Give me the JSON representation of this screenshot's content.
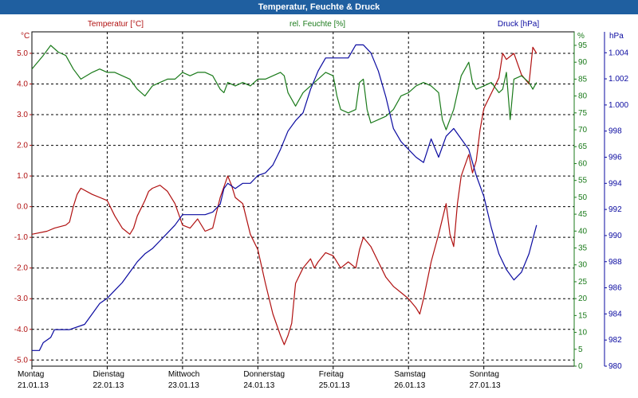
{
  "window": {
    "title": "Temperatur, Feuchte & Druck"
  },
  "chart_data": {
    "type": "line",
    "title": "Temperatur, Feuchte & Druck",
    "colors": {
      "temperature": "#b01010",
      "humidity": "#1a7a1a",
      "pressure": "#0a0aa0",
      "grid": "#000000"
    },
    "grid": true,
    "x_categories": [
      {
        "day": "Montag",
        "date": "21.01.13"
      },
      {
        "day": "Dienstag",
        "date": "22.01.13"
      },
      {
        "day": "Mittwoch",
        "date": "23.01.13"
      },
      {
        "day": "Donnerstag",
        "date": "24.01.13"
      },
      {
        "day": "Freitag",
        "date": "25.01.13"
      },
      {
        "day": "Samstag",
        "date": "26.01.13"
      },
      {
        "day": "Sonntag",
        "date": "27.01.13"
      }
    ],
    "x_range_days": [
      0,
      7.2
    ],
    "axes": {
      "temperature": {
        "label": "Temperatur [°C]",
        "unit": "°C",
        "range": [
          -5.2,
          5.7
        ],
        "ticks": [
          {
            "v": 5.0,
            "t": "5.0"
          },
          {
            "v": 4.0,
            "t": "4.0"
          },
          {
            "v": 3.0,
            "t": "3.0"
          },
          {
            "v": 2.0,
            "t": "2.0"
          },
          {
            "v": 1.0,
            "t": "1.0"
          },
          {
            "v": 0.0,
            "t": "0.0"
          },
          {
            "v": -1.0,
            "t": "-1.0"
          },
          {
            "v": -2.0,
            "t": "-2.0"
          },
          {
            "v": -3.0,
            "t": "-3.0"
          },
          {
            "v": -4.0,
            "t": "-4.0"
          },
          {
            "v": -5.0,
            "t": "-5.0"
          }
        ]
      },
      "humidity": {
        "label": "rel. Feuchte [%]",
        "unit": "%",
        "range": [
          0,
          99
        ],
        "ticks": [
          {
            "v": 95,
            "t": "95"
          },
          {
            "v": 90,
            "t": "90"
          },
          {
            "v": 85,
            "t": "85"
          },
          {
            "v": 80,
            "t": "80"
          },
          {
            "v": 75,
            "t": "75"
          },
          {
            "v": 70,
            "t": "70"
          },
          {
            "v": 65,
            "t": "65"
          },
          {
            "v": 60,
            "t": "60"
          },
          {
            "v": 55,
            "t": "55"
          },
          {
            "v": 50,
            "t": "50"
          },
          {
            "v": 45,
            "t": "45"
          },
          {
            "v": 40,
            "t": "40"
          },
          {
            "v": 35,
            "t": "35"
          },
          {
            "v": 30,
            "t": "30"
          },
          {
            "v": 25,
            "t": "25"
          },
          {
            "v": 20,
            "t": "20"
          },
          {
            "v": 15,
            "t": "15"
          },
          {
            "v": 10,
            "t": "10"
          },
          {
            "v": 5,
            "t": "5"
          },
          {
            "v": 0,
            "t": "0"
          }
        ]
      },
      "pressure": {
        "label": "Druck [hPa]",
        "unit": "hPa",
        "range": [
          980,
          1005.6
        ],
        "ticks": [
          {
            "v": 1004,
            "t": "1.004"
          },
          {
            "v": 1002,
            "t": "1.002"
          },
          {
            "v": 1000,
            "t": "1.000"
          },
          {
            "v": 998,
            "t": "998"
          },
          {
            "v": 996,
            "t": "996"
          },
          {
            "v": 994,
            "t": "994"
          },
          {
            "v": 992,
            "t": "992"
          },
          {
            "v": 990,
            "t": "990"
          },
          {
            "v": 988,
            "t": "988"
          },
          {
            "v": 986,
            "t": "986"
          },
          {
            "v": 984,
            "t": "984"
          },
          {
            "v": 982,
            "t": "982"
          },
          {
            "v": 980,
            "t": "980"
          }
        ]
      }
    },
    "series": [
      {
        "name": "Temperatur [°C]",
        "axis": "temperature",
        "points": [
          [
            0.0,
            -0.9
          ],
          [
            0.2,
            -0.8
          ],
          [
            0.3,
            -0.7
          ],
          [
            0.45,
            -0.6
          ],
          [
            0.5,
            -0.5
          ],
          [
            0.55,
            0.0
          ],
          [
            0.6,
            0.4
          ],
          [
            0.65,
            0.6
          ],
          [
            0.8,
            0.4
          ],
          [
            1.0,
            0.2
          ],
          [
            1.1,
            -0.3
          ],
          [
            1.2,
            -0.7
          ],
          [
            1.3,
            -0.9
          ],
          [
            1.35,
            -0.7
          ],
          [
            1.4,
            -0.3
          ],
          [
            1.5,
            0.2
          ],
          [
            1.55,
            0.5
          ],
          [
            1.6,
            0.6
          ],
          [
            1.7,
            0.7
          ],
          [
            1.8,
            0.5
          ],
          [
            1.9,
            0.1
          ],
          [
            2.0,
            -0.6
          ],
          [
            2.1,
            -0.7
          ],
          [
            2.2,
            -0.4
          ],
          [
            2.3,
            -0.8
          ],
          [
            2.4,
            -0.7
          ],
          [
            2.5,
            0.3
          ],
          [
            2.6,
            1.0
          ],
          [
            2.65,
            0.7
          ],
          [
            2.7,
            0.3
          ],
          [
            2.8,
            0.1
          ],
          [
            2.9,
            -0.9
          ],
          [
            3.0,
            -1.4
          ],
          [
            3.1,
            -2.5
          ],
          [
            3.2,
            -3.5
          ],
          [
            3.3,
            -4.2
          ],
          [
            3.35,
            -4.5
          ],
          [
            3.4,
            -4.2
          ],
          [
            3.45,
            -3.8
          ],
          [
            3.5,
            -2.5
          ],
          [
            3.6,
            -2.0
          ],
          [
            3.7,
            -1.7
          ],
          [
            3.75,
            -2.0
          ],
          [
            3.8,
            -1.8
          ],
          [
            3.9,
            -1.5
          ],
          [
            4.0,
            -1.6
          ],
          [
            4.1,
            -2.0
          ],
          [
            4.2,
            -1.8
          ],
          [
            4.3,
            -2.0
          ],
          [
            4.35,
            -1.4
          ],
          [
            4.4,
            -1.0
          ],
          [
            4.5,
            -1.3
          ],
          [
            4.6,
            -1.8
          ],
          [
            4.7,
            -2.3
          ],
          [
            4.8,
            -2.6
          ],
          [
            4.9,
            -2.8
          ],
          [
            5.0,
            -3.0
          ],
          [
            5.1,
            -3.3
          ],
          [
            5.15,
            -3.5
          ],
          [
            5.2,
            -3.0
          ],
          [
            5.3,
            -1.8
          ],
          [
            5.4,
            -0.9
          ],
          [
            5.5,
            0.1
          ],
          [
            5.55,
            -0.9
          ],
          [
            5.6,
            -1.3
          ],
          [
            5.65,
            0.1
          ],
          [
            5.7,
            1.0
          ],
          [
            5.8,
            1.7
          ],
          [
            5.85,
            1.1
          ],
          [
            5.9,
            1.5
          ],
          [
            5.95,
            2.5
          ],
          [
            6.0,
            3.2
          ],
          [
            6.1,
            3.7
          ],
          [
            6.2,
            4.2
          ],
          [
            6.25,
            5.0
          ],
          [
            6.3,
            4.8
          ],
          [
            6.4,
            5.0
          ],
          [
            6.5,
            4.3
          ],
          [
            6.6,
            4.0
          ],
          [
            6.65,
            5.2
          ],
          [
            6.7,
            5.0
          ]
        ]
      },
      {
        "name": "rel. Feuchte [%]",
        "axis": "humidity",
        "points": [
          [
            0.0,
            88
          ],
          [
            0.15,
            92
          ],
          [
            0.25,
            95
          ],
          [
            0.35,
            93
          ],
          [
            0.45,
            92
          ],
          [
            0.55,
            88
          ],
          [
            0.65,
            85
          ],
          [
            0.8,
            87
          ],
          [
            0.9,
            88
          ],
          [
            1.0,
            87
          ],
          [
            1.1,
            87
          ],
          [
            1.2,
            86
          ],
          [
            1.3,
            85
          ],
          [
            1.4,
            82
          ],
          [
            1.5,
            80
          ],
          [
            1.6,
            83
          ],
          [
            1.7,
            84
          ],
          [
            1.8,
            85
          ],
          [
            1.9,
            85
          ],
          [
            2.0,
            87
          ],
          [
            2.1,
            86
          ],
          [
            2.2,
            87
          ],
          [
            2.3,
            87
          ],
          [
            2.4,
            86
          ],
          [
            2.5,
            82
          ],
          [
            2.55,
            81
          ],
          [
            2.6,
            84
          ],
          [
            2.7,
            83
          ],
          [
            2.8,
            84
          ],
          [
            2.9,
            83
          ],
          [
            3.0,
            85
          ],
          [
            3.1,
            85
          ],
          [
            3.2,
            86
          ],
          [
            3.3,
            87
          ],
          [
            3.35,
            86
          ],
          [
            3.4,
            81
          ],
          [
            3.5,
            77
          ],
          [
            3.6,
            81
          ],
          [
            3.7,
            83
          ],
          [
            3.8,
            85
          ],
          [
            3.9,
            87
          ],
          [
            4.0,
            86
          ],
          [
            4.05,
            80
          ],
          [
            4.1,
            76
          ],
          [
            4.2,
            75
          ],
          [
            4.3,
            76
          ],
          [
            4.35,
            84
          ],
          [
            4.4,
            85
          ],
          [
            4.45,
            76
          ],
          [
            4.5,
            72
          ],
          [
            4.6,
            73
          ],
          [
            4.7,
            74
          ],
          [
            4.8,
            76
          ],
          [
            4.9,
            80
          ],
          [
            5.0,
            81
          ],
          [
            5.1,
            83
          ],
          [
            5.2,
            84
          ],
          [
            5.3,
            83
          ],
          [
            5.4,
            81
          ],
          [
            5.45,
            73
          ],
          [
            5.5,
            70
          ],
          [
            5.6,
            76
          ],
          [
            5.7,
            86
          ],
          [
            5.8,
            90
          ],
          [
            5.85,
            84
          ],
          [
            5.9,
            82
          ],
          [
            6.0,
            83
          ],
          [
            6.1,
            84
          ],
          [
            6.2,
            81
          ],
          [
            6.25,
            82
          ],
          [
            6.3,
            87
          ],
          [
            6.35,
            73
          ],
          [
            6.4,
            85
          ],
          [
            6.5,
            86
          ],
          [
            6.6,
            84
          ],
          [
            6.65,
            82
          ],
          [
            6.7,
            84
          ]
        ]
      },
      {
        "name": "Druck [hPa]",
        "axis": "pressure",
        "points": [
          [
            0.0,
            981.2
          ],
          [
            0.1,
            981.2
          ],
          [
            0.15,
            981.8
          ],
          [
            0.25,
            982.2
          ],
          [
            0.3,
            982.8
          ],
          [
            0.5,
            982.8
          ],
          [
            0.7,
            983.2
          ],
          [
            0.8,
            984.0
          ],
          [
            0.9,
            984.8
          ],
          [
            1.0,
            985.2
          ],
          [
            1.1,
            985.8
          ],
          [
            1.2,
            986.4
          ],
          [
            1.3,
            987.2
          ],
          [
            1.4,
            988.0
          ],
          [
            1.5,
            988.6
          ],
          [
            1.6,
            989.0
          ],
          [
            1.7,
            989.6
          ],
          [
            1.8,
            990.2
          ],
          [
            1.9,
            990.8
          ],
          [
            2.0,
            991.6
          ],
          [
            2.1,
            991.6
          ],
          [
            2.3,
            991.6
          ],
          [
            2.4,
            991.8
          ],
          [
            2.5,
            992.4
          ],
          [
            2.55,
            993.6
          ],
          [
            2.6,
            994.0
          ],
          [
            2.7,
            993.6
          ],
          [
            2.8,
            994.0
          ],
          [
            2.9,
            994.0
          ],
          [
            3.0,
            994.6
          ],
          [
            3.1,
            994.8
          ],
          [
            3.2,
            995.4
          ],
          [
            3.3,
            996.6
          ],
          [
            3.4,
            998.0
          ],
          [
            3.5,
            998.8
          ],
          [
            3.6,
            999.4
          ],
          [
            3.7,
            1001.2
          ],
          [
            3.8,
            1002.6
          ],
          [
            3.9,
            1003.6
          ],
          [
            4.0,
            1003.6
          ],
          [
            4.2,
            1003.6
          ],
          [
            4.3,
            1004.6
          ],
          [
            4.4,
            1004.6
          ],
          [
            4.5,
            1004.0
          ],
          [
            4.6,
            1002.6
          ],
          [
            4.7,
            1000.6
          ],
          [
            4.8,
            998.2
          ],
          [
            4.9,
            997.2
          ],
          [
            5.0,
            996.6
          ],
          [
            5.1,
            996.0
          ],
          [
            5.2,
            995.6
          ],
          [
            5.3,
            997.4
          ],
          [
            5.4,
            996.0
          ],
          [
            5.5,
            997.6
          ],
          [
            5.6,
            998.2
          ],
          [
            5.7,
            997.4
          ],
          [
            5.8,
            996.6
          ],
          [
            5.9,
            994.6
          ],
          [
            6.0,
            993.0
          ],
          [
            6.1,
            990.6
          ],
          [
            6.2,
            988.6
          ],
          [
            6.3,
            987.4
          ],
          [
            6.4,
            986.6
          ],
          [
            6.5,
            987.2
          ],
          [
            6.6,
            988.6
          ],
          [
            6.7,
            990.8
          ]
        ]
      }
    ]
  }
}
